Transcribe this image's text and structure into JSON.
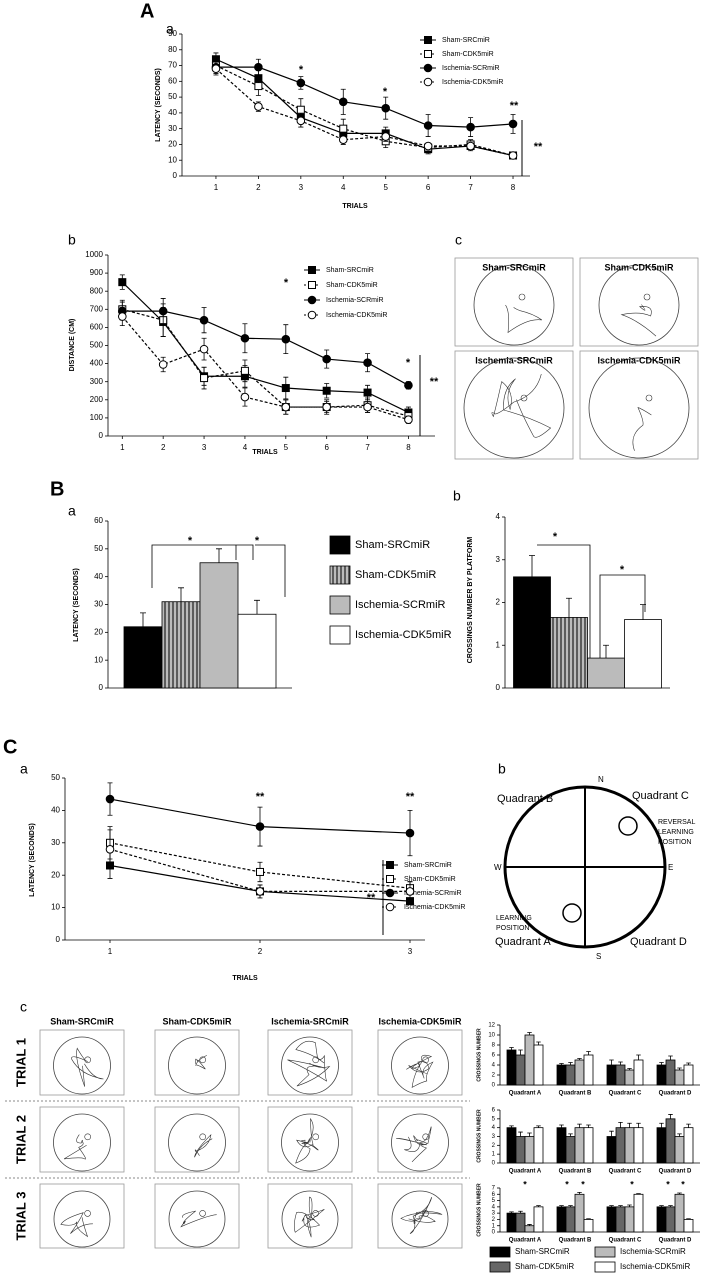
{
  "figure": {
    "panels": [
      "A",
      "a",
      "b",
      "c",
      "B",
      "a",
      "b",
      "C",
      "a",
      "b",
      "c"
    ],
    "swim_paths_A": [
      "Sham-SRCmiR",
      "Sham-CDK5miR",
      "Ischemia-SRCmiR",
      "Ischemia-CDK5miR"
    ],
    "maze": {
      "north": "N",
      "south": "S",
      "west": "W",
      "east": "E",
      "quadrants": [
        "Quadrant A",
        "Quadrant B",
        "Quadrant C",
        "Quadrant D"
      ],
      "reversal_label": [
        "REVERSAL",
        "LEARNING",
        "POSITION"
      ],
      "learning_label": [
        "LEARNING",
        "POSITION"
      ]
    },
    "swim_paths_C": {
      "columns": [
        "Sham-SRCmiR",
        "Sham-CDK5miR",
        "Ischemia-SRCmiR",
        "Ischemia-CDK5miR"
      ],
      "trials": [
        "TRIAL 1",
        "TRIAL 2",
        "TRIAL 3"
      ]
    }
  },
  "chart_data": [
    {
      "type": "line",
      "y_label": "LATENCY (SECONDS)",
      "x_label": "TRIALS",
      "x": [
        1,
        2,
        3,
        4,
        5,
        6,
        7,
        8
      ],
      "xlim": [
        0.2,
        8.4
      ],
      "xticks": [
        1,
        2,
        3,
        4,
        5,
        6,
        7,
        8
      ],
      "ylim": [
        0,
        90
      ],
      "yticks": [
        0,
        10,
        20,
        30,
        40,
        50,
        60,
        70,
        80,
        90
      ],
      "series": [
        {
          "name": "Sham-SRCmiR",
          "color": "#000000",
          "marker": "filled-square",
          "dash": false,
          "values": [
            74,
            62,
            37,
            27,
            27,
            17,
            19,
            13
          ],
          "errors": [
            4,
            5,
            6,
            5,
            4,
            3,
            3,
            2
          ]
        },
        {
          "name": "Sham-CDK5miR",
          "color": "#000000",
          "marker": "open-square",
          "dash": true,
          "values": [
            70,
            57,
            42,
            30,
            22,
            18,
            20,
            13
          ],
          "errors": [
            4,
            6,
            7,
            6,
            4,
            3,
            3,
            2
          ]
        },
        {
          "name": "Ischemia-SCRmiR",
          "color": "#000000",
          "marker": "filled-circle",
          "dash": false,
          "values": [
            69,
            69,
            59,
            47,
            43,
            32,
            31,
            33
          ],
          "errors": [
            5,
            5,
            4,
            8,
            7,
            7,
            6,
            6
          ]
        },
        {
          "name": "Ischemia-CDK5miR",
          "color": "#000000",
          "marker": "open-circle",
          "dash": true,
          "values": [
            68,
            44,
            35,
            23,
            25,
            19,
            19,
            13
          ],
          "errors": [
            3,
            3,
            4,
            3,
            3,
            2,
            2,
            2
          ]
        }
      ],
      "annotations": [
        "*",
        "*",
        "**",
        "**"
      ]
    },
    {
      "type": "line",
      "y_label": "DISTANCE (CM)",
      "x_label": "TRIALS",
      "x": [
        1,
        2,
        3,
        4,
        5,
        6,
        7,
        8
      ],
      "xlim": [
        0.65,
        8.65
      ],
      "xticks": [
        1,
        2,
        3,
        4,
        5,
        6,
        7,
        8
      ],
      "ylim": [
        0,
        1000
      ],
      "yticks": [
        0,
        100,
        200,
        300,
        400,
        500,
        600,
        700,
        800,
        900,
        1000
      ],
      "series": [
        {
          "name": "Sham-SRCmiR",
          "color": "#000000",
          "marker": "filled-square",
          "dash": false,
          "values": [
            850,
            630,
            330,
            330,
            265,
            250,
            240,
            130
          ],
          "errors": [
            40,
            80,
            50,
            60,
            60,
            40,
            40,
            30
          ]
        },
        {
          "name": "Sham-CDK5miR",
          "color": "#000000",
          "marker": "open-square",
          "dash": true,
          "values": [
            700,
            640,
            320,
            360,
            160,
            160,
            170,
            110
          ],
          "errors": [
            50,
            90,
            60,
            60,
            40,
            40,
            40,
            30
          ]
        },
        {
          "name": "Ischemia-SCRmiR",
          "color": "#000000",
          "marker": "filled-circle",
          "dash": false,
          "values": [
            690,
            690,
            640,
            540,
            535,
            425,
            405,
            280
          ],
          "errors": [
            50,
            70,
            70,
            80,
            80,
            50,
            50,
            20
          ]
        },
        {
          "name": "Ischemia-CDK5miR",
          "color": "#000000",
          "marker": "open-circle",
          "dash": true,
          "values": [
            660,
            395,
            480,
            215,
            160,
            160,
            160,
            90
          ],
          "errors": [
            50,
            40,
            60,
            50,
            40,
            30,
            30,
            20
          ]
        }
      ],
      "annotations": [
        "*",
        "*",
        "**"
      ]
    },
    {
      "type": "bar",
      "y_label": "LATENCY (SECONDS)",
      "categories": [
        null
      ],
      "ylim": [
        0,
        60
      ],
      "yticks": [
        0,
        10,
        20,
        30,
        40,
        50,
        60
      ],
      "series": [
        {
          "name": "Sham-SRCmiR",
          "color": "#000000",
          "hatch": false,
          "values": [
            22
          ],
          "errors": [
            5
          ]
        },
        {
          "name": "Sham-CDK5miR",
          "color": "#888888",
          "hatch": true,
          "values": [
            31
          ],
          "errors": [
            5
          ]
        },
        {
          "name": "Ischemia-SCRmiR",
          "color": "#bbbbbb",
          "hatch": false,
          "values": [
            45
          ],
          "errors": [
            5
          ]
        },
        {
          "name": "Ischemia-CDK5miR",
          "color": "#ffffff",
          "hatch": false,
          "values": [
            26.5
          ],
          "errors": [
            5
          ]
        }
      ],
      "annotations": [
        "*",
        "*"
      ]
    },
    {
      "type": "bar",
      "y_label": "CROSSINGS  NUMBER BY PLATFORM",
      "categories": [
        null
      ],
      "ylim": [
        0,
        4
      ],
      "yticks": [
        0,
        1,
        2,
        3,
        4
      ],
      "series": [
        {
          "color": "#000000",
          "hatch": false,
          "values": [
            2.6
          ],
          "errors": [
            0.5
          ]
        },
        {
          "color": "#888888",
          "hatch": true,
          "values": [
            1.65
          ],
          "errors": [
            0.45
          ]
        },
        {
          "color": "#bbbbbb",
          "hatch": false,
          "values": [
            0.7
          ],
          "errors": [
            0.3
          ]
        },
        {
          "color": "#ffffff",
          "hatch": false,
          "values": [
            1.6
          ],
          "errors": [
            0.35
          ]
        }
      ],
      "annotations": [
        "*",
        "*"
      ]
    },
    {
      "type": "line",
      "y_label": "LATENCY (SECONDS)",
      "x_label": "TRIALS",
      "x": [
        1,
        2,
        3
      ],
      "xlim": [
        0.7,
        3.1
      ],
      "xticks": [
        1,
        2,
        3
      ],
      "ylim": [
        0,
        50
      ],
      "yticks": [
        0,
        10,
        20,
        30,
        40,
        50
      ],
      "series": [
        {
          "name": "Sham-SRCmiR",
          "color": "#000000",
          "marker": "filled-square",
          "dash": false,
          "values": [
            23,
            15,
            12
          ],
          "errors": [
            4,
            2,
            1
          ]
        },
        {
          "name": "Sham-CDK5miR",
          "color": "#000000",
          "marker": "open-square",
          "dash": true,
          "values": [
            30,
            21,
            16
          ],
          "errors": [
            5,
            3,
            2
          ]
        },
        {
          "name": "Ischemia-SCRmiR",
          "color": "#000000",
          "marker": "filled-circle",
          "dash": false,
          "values": [
            43.5,
            35,
            33
          ],
          "errors": [
            5,
            6,
            7
          ]
        },
        {
          "name": "Ischemia-CDK5miR",
          "color": "#000000",
          "marker": "open-circle",
          "dash": true,
          "values": [
            28,
            15,
            15
          ],
          "errors": [
            6,
            2,
            3
          ]
        }
      ],
      "annotations": [
        "**",
        "**",
        "**"
      ]
    },
    {
      "type": "bar",
      "y_label": "CROSSINGS NUMBER",
      "categories": [
        "Quadrant A",
        "Quadrant B",
        "Quadrant C",
        "Quadrant D"
      ],
      "ylim": [
        0,
        12
      ],
      "yticks": [
        0,
        2,
        4,
        6,
        8,
        10,
        12
      ],
      "series": [
        {
          "color": "#000000",
          "hatch": false,
          "values": [
            7,
            4,
            4,
            4
          ],
          "errors": [
            0.5,
            0.3,
            1,
            0.5
          ]
        },
        {
          "color": "#666666",
          "hatch": false,
          "values": [
            6,
            4,
            4,
            5
          ],
          "errors": [
            1,
            0.5,
            0.6,
            0.8
          ]
        },
        {
          "color": "#bbbbbb",
          "hatch": false,
          "values": [
            10,
            5,
            3,
            3
          ],
          "errors": [
            0.5,
            0.3,
            0.3,
            0.4
          ]
        },
        {
          "color": "#ffffff",
          "hatch": false,
          "values": [
            8,
            6,
            5,
            4
          ],
          "errors": [
            0.6,
            0.7,
            1,
            0.4
          ]
        }
      ]
    },
    {
      "type": "bar",
      "y_label": "CROSSINGS NUMBER",
      "categories": [
        "Quadrant A",
        "Quadrant B",
        "Quadrant C",
        "Quadrant D"
      ],
      "ylim": [
        0,
        6
      ],
      "yticks": [
        0,
        1,
        2,
        3,
        4,
        5,
        6
      ],
      "series": [
        {
          "color": "#000000",
          "hatch": false,
          "values": [
            4,
            4,
            3,
            4
          ],
          "errors": [
            0.2,
            0.3,
            0.6,
            0.5
          ]
        },
        {
          "color": "#666666",
          "hatch": false,
          "values": [
            3,
            3,
            4,
            5
          ],
          "errors": [
            0.5,
            0.3,
            0.6,
            0.5
          ]
        },
        {
          "color": "#bbbbbb",
          "hatch": false,
          "values": [
            3,
            4,
            4,
            3
          ],
          "errors": [
            0.4,
            0.4,
            0.5,
            0.3
          ]
        },
        {
          "color": "#ffffff",
          "hatch": false,
          "values": [
            4,
            4,
            4,
            4
          ],
          "errors": [
            0.2,
            0.3,
            0.5,
            0.4
          ]
        }
      ]
    },
    {
      "type": "bar",
      "y_label": "CROSSINGS NUMBER",
      "categories": [
        "Quadrant A",
        "Quadrant B",
        "Quadrant C",
        "Quadrant D"
      ],
      "ylim": [
        0,
        7
      ],
      "yticks": [
        0,
        1,
        2,
        3,
        4,
        5,
        6,
        7
      ],
      "series": [
        {
          "name": "Sham-SRCmiR",
          "color": "#000000",
          "hatch": false,
          "values": [
            3,
            4,
            4,
            4
          ],
          "errors": [
            0.2,
            0.2,
            0.2,
            0.2
          ]
        },
        {
          "name": "Sham-CDK5miR",
          "color": "#666666",
          "hatch": false,
          "values": [
            3,
            4,
            4,
            4
          ],
          "errors": [
            0.3,
            0.2,
            0.2,
            0.2
          ]
        },
        {
          "name": "Ischemia-SCRmiR",
          "color": "#bbbbbb",
          "hatch": false,
          "values": [
            1,
            6,
            4,
            6
          ],
          "errors": [
            0.2,
            0.3,
            0.3,
            0.2
          ]
        },
        {
          "name": "Ischemia-CDK5miR",
          "color": "#ffffff",
          "hatch": false,
          "values": [
            4,
            2,
            6,
            2
          ],
          "errors": [
            0.2,
            0.1,
            0.1,
            0.1
          ]
        }
      ],
      "annotations": [
        "*",
        "*",
        "*",
        "*",
        "*",
        "*"
      ]
    }
  ]
}
